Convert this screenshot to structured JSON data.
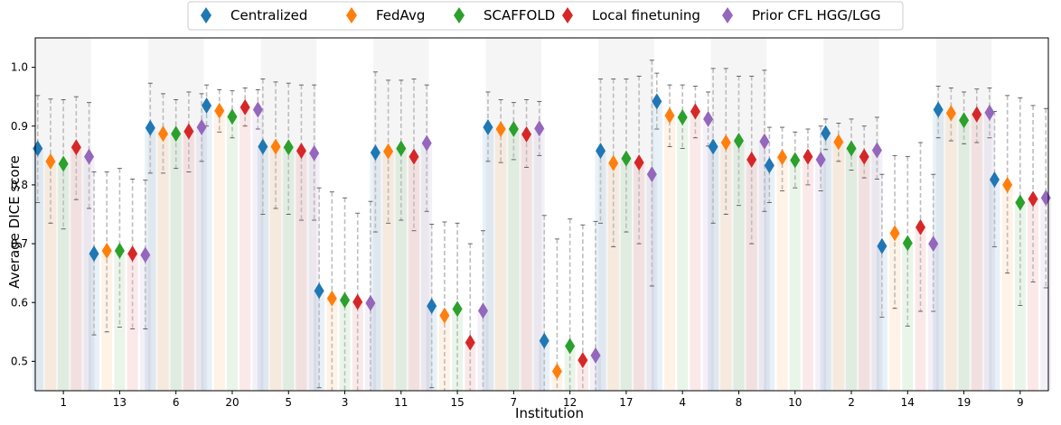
{
  "chart_data": {
    "type": "scatter",
    "xlabel": "Institution",
    "ylabel": "Average DICE score",
    "ylim": [
      0.45,
      1.05
    ],
    "yticks": [
      "0.5",
      "0.6",
      "0.7",
      "0.8",
      "0.9",
      "1.0"
    ],
    "legend_position": "top-center",
    "categories": [
      "1",
      "13",
      "6",
      "20",
      "5",
      "3",
      "11",
      "15",
      "7",
      "12",
      "17",
      "4",
      "8",
      "10",
      "2",
      "14",
      "19",
      "9"
    ],
    "series": [
      {
        "name": "Centralized",
        "color": "#1f77b4",
        "values": [
          0.862,
          0.683,
          0.897,
          0.935,
          0.865,
          0.62,
          0.855,
          0.594,
          0.898,
          0.535,
          0.858,
          0.942,
          0.865,
          0.833,
          0.888,
          0.696,
          0.928,
          0.809
        ],
        "err_low": [
          0.77,
          0.545,
          0.82,
          0.9,
          0.75,
          0.455,
          0.72,
          0.455,
          0.84,
          0.33,
          0.735,
          0.895,
          0.735,
          0.77,
          0.86,
          0.575,
          0.88,
          0.695
        ],
        "err_high": [
          0.952,
          0.822,
          0.973,
          0.97,
          0.98,
          0.795,
          0.992,
          0.733,
          0.958,
          0.748,
          0.98,
          0.99,
          0.998,
          0.898,
          0.912,
          0.818,
          0.968,
          0.925
        ]
      },
      {
        "name": "FedAvg",
        "color": "#ff7f0e",
        "values": [
          0.84,
          0.688,
          0.887,
          0.926,
          0.865,
          0.607,
          0.857,
          0.578,
          0.895,
          0.483,
          0.837,
          0.918,
          0.872,
          0.847,
          0.873,
          0.718,
          0.922,
          0.8
        ],
        "err_low": [
          0.735,
          0.55,
          0.82,
          0.89,
          0.76,
          0.44,
          0.735,
          0.44,
          0.838,
          0.26,
          0.695,
          0.865,
          0.75,
          0.79,
          0.84,
          0.59,
          0.875,
          0.65
        ],
        "err_high": [
          0.946,
          0.822,
          0.955,
          0.962,
          0.975,
          0.788,
          0.978,
          0.737,
          0.945,
          0.708,
          0.98,
          0.97,
          0.998,
          0.898,
          0.905,
          0.85,
          0.965,
          0.952
        ]
      },
      {
        "name": "SCAFFOLD",
        "color": "#2ca02c",
        "values": [
          0.836,
          0.688,
          0.887,
          0.916,
          0.864,
          0.604,
          0.862,
          0.589,
          0.895,
          0.526,
          0.845,
          0.915,
          0.875,
          0.842,
          0.862,
          0.701,
          0.91,
          0.77
        ],
        "err_low": [
          0.725,
          0.558,
          0.828,
          0.88,
          0.75,
          0.43,
          0.74,
          0.435,
          0.843,
          0.3,
          0.72,
          0.862,
          0.765,
          0.795,
          0.825,
          0.56,
          0.87,
          0.595
        ],
        "err_high": [
          0.945,
          0.828,
          0.945,
          0.96,
          0.973,
          0.778,
          0.978,
          0.735,
          0.94,
          0.742,
          0.98,
          0.97,
          0.985,
          0.89,
          0.912,
          0.848,
          0.958,
          0.948
        ]
      },
      {
        "name": "Local finetuning",
        "color": "#d62728",
        "values": [
          0.864,
          0.683,
          0.891,
          0.932,
          0.858,
          0.601,
          0.848,
          0.532,
          0.886,
          0.502,
          0.838,
          0.925,
          0.843,
          0.848,
          0.848,
          0.728,
          0.92,
          0.776
        ],
        "err_low": [
          0.775,
          0.555,
          0.822,
          0.9,
          0.74,
          0.445,
          0.722,
          0.395,
          0.83,
          0.27,
          0.7,
          0.88,
          0.7,
          0.8,
          0.812,
          0.585,
          0.872,
          0.635
        ],
        "err_high": [
          0.95,
          0.81,
          0.958,
          0.965,
          0.97,
          0.752,
          0.98,
          0.7,
          0.945,
          0.732,
          0.985,
          0.968,
          0.985,
          0.895,
          0.9,
          0.872,
          0.963,
          0.935
        ]
      },
      {
        "name": "Prior CFL HGG/LGG",
        "color": "#9467bd",
        "values": [
          0.848,
          0.681,
          0.898,
          0.928,
          0.854,
          0.599,
          0.871,
          0.586,
          0.896,
          0.51,
          0.818,
          0.912,
          0.874,
          0.843,
          0.859,
          0.7,
          0.923,
          0.778
        ],
        "err_low": [
          0.76,
          0.555,
          0.84,
          0.895,
          0.74,
          0.43,
          0.755,
          0.45,
          0.85,
          0.29,
          0.628,
          0.866,
          0.755,
          0.79,
          0.81,
          0.585,
          0.88,
          0.625
        ],
        "err_high": [
          0.94,
          0.808,
          0.955,
          0.962,
          0.97,
          0.772,
          0.97,
          0.722,
          0.942,
          0.738,
          1.012,
          0.958,
          0.995,
          0.9,
          0.915,
          0.818,
          0.965,
          0.93
        ]
      }
    ]
  }
}
